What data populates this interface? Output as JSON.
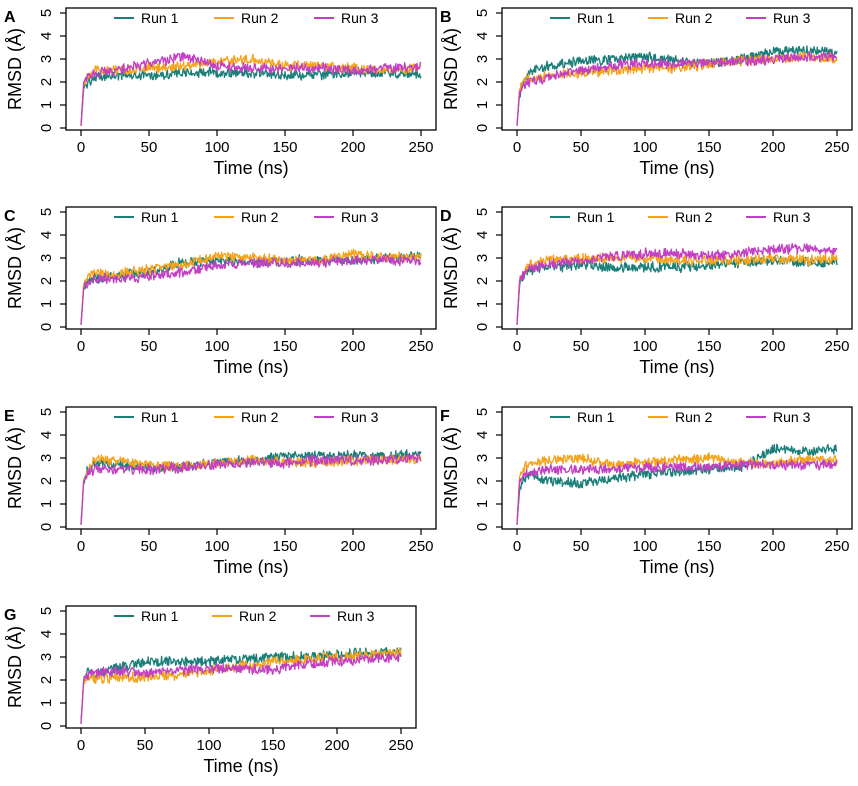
{
  "figure": {
    "xlabel": "Time (ns)",
    "ylabel": "RMSD (Å)",
    "series_colors": {
      "Run 1": "#1a7f79",
      "Run 2": "#f5a31a",
      "Run 3": "#c33fc3"
    }
  },
  "chart_data": [
    {
      "panel": "A",
      "type": "line",
      "xlabel": "Time (ns)",
      "ylabel": "RMSD (Å)",
      "xlim": [
        0,
        250
      ],
      "ylim": [
        0,
        5
      ],
      "xticks": [
        0,
        50,
        100,
        150,
        200,
        250
      ],
      "yticks": [
        0,
        1,
        2,
        3,
        4,
        5
      ],
      "legend_position": "top",
      "x": [
        0,
        2,
        5,
        10,
        25,
        50,
        75,
        100,
        125,
        150,
        175,
        200,
        225,
        250
      ],
      "series": [
        {
          "name": "Run 1",
          "values": [
            0.1,
            1.7,
            2.0,
            2.2,
            2.3,
            2.3,
            2.4,
            2.4,
            2.4,
            2.3,
            2.3,
            2.4,
            2.4,
            2.3
          ]
        },
        {
          "name": "Run 2",
          "values": [
            0.1,
            1.9,
            2.3,
            2.5,
            2.5,
            2.6,
            2.7,
            2.9,
            3.0,
            2.7,
            2.7,
            2.6,
            2.5,
            2.6
          ]
        },
        {
          "name": "Run 3",
          "values": [
            0.1,
            2.0,
            2.2,
            2.4,
            2.5,
            2.8,
            3.1,
            2.7,
            2.6,
            2.6,
            2.6,
            2.5,
            2.6,
            2.7
          ]
        }
      ]
    },
    {
      "panel": "B",
      "type": "line",
      "xlabel": "Time (ns)",
      "ylabel": "RMSD (Å)",
      "xlim": [
        0,
        250
      ],
      "ylim": [
        0,
        5
      ],
      "xticks": [
        0,
        50,
        100,
        150,
        200,
        250
      ],
      "yticks": [
        0,
        1,
        2,
        3,
        4,
        5
      ],
      "legend_position": "top",
      "x": [
        0,
        2,
        5,
        10,
        25,
        50,
        75,
        100,
        125,
        150,
        175,
        200,
        225,
        250
      ],
      "series": [
        {
          "name": "Run 1",
          "values": [
            0.1,
            1.5,
            2.0,
            2.5,
            2.7,
            2.9,
            3.0,
            3.1,
            2.9,
            2.8,
            3.0,
            3.3,
            3.4,
            3.2
          ]
        },
        {
          "name": "Run 2",
          "values": [
            0.1,
            1.7,
            2.0,
            2.2,
            2.3,
            2.4,
            2.5,
            2.6,
            2.6,
            2.8,
            2.9,
            3.0,
            3.1,
            3.0
          ]
        },
        {
          "name": "Run 3",
          "values": [
            0.1,
            1.6,
            1.9,
            2.0,
            2.2,
            2.5,
            2.7,
            2.8,
            2.8,
            2.8,
            2.9,
            3.0,
            3.1,
            3.1
          ]
        }
      ]
    },
    {
      "panel": "C",
      "type": "line",
      "xlabel": "Time (ns)",
      "ylabel": "RMSD (Å)",
      "xlim": [
        0,
        250
      ],
      "ylim": [
        0,
        5
      ],
      "xticks": [
        0,
        50,
        100,
        150,
        200,
        250
      ],
      "yticks": [
        0,
        1,
        2,
        3,
        4,
        5
      ],
      "legend_position": "top",
      "x": [
        0,
        2,
        5,
        10,
        25,
        50,
        75,
        100,
        125,
        150,
        175,
        200,
        225,
        250
      ],
      "series": [
        {
          "name": "Run 1",
          "values": [
            0.1,
            1.7,
            2.0,
            2.1,
            2.2,
            2.4,
            2.8,
            2.9,
            2.8,
            2.9,
            2.9,
            2.9,
            3.0,
            3.1
          ]
        },
        {
          "name": "Run 2",
          "values": [
            0.1,
            1.9,
            2.2,
            2.3,
            2.3,
            2.5,
            2.7,
            3.1,
            3.0,
            2.9,
            2.9,
            3.2,
            3.0,
            3.1
          ]
        },
        {
          "name": "Run 3",
          "values": [
            0.1,
            1.7,
            1.9,
            2.1,
            2.1,
            2.2,
            2.4,
            2.7,
            2.8,
            2.8,
            2.8,
            2.9,
            2.9,
            2.9
          ]
        }
      ]
    },
    {
      "panel": "D",
      "type": "line",
      "xlabel": "Time (ns)",
      "ylabel": "RMSD (Å)",
      "xlim": [
        0,
        250
      ],
      "ylim": [
        0,
        5
      ],
      "xticks": [
        0,
        50,
        100,
        150,
        200,
        250
      ],
      "yticks": [
        0,
        1,
        2,
        3,
        4,
        5
      ],
      "legend_position": "top",
      "x": [
        0,
        2,
        5,
        10,
        25,
        50,
        75,
        100,
        125,
        150,
        175,
        200,
        225,
        250
      ],
      "series": [
        {
          "name": "Run 1",
          "values": [
            0.1,
            1.8,
            2.2,
            2.5,
            2.6,
            2.7,
            2.6,
            2.6,
            2.6,
            2.7,
            2.8,
            2.9,
            2.8,
            2.8
          ]
        },
        {
          "name": "Run 2",
          "values": [
            0.1,
            2.0,
            2.4,
            2.7,
            2.9,
            3.0,
            3.0,
            3.0,
            2.9,
            2.9,
            2.9,
            3.0,
            2.9,
            3.0
          ]
        },
        {
          "name": "Run 3",
          "values": [
            0.1,
            2.0,
            2.3,
            2.5,
            2.7,
            2.9,
            3.1,
            3.2,
            3.2,
            3.1,
            3.2,
            3.4,
            3.4,
            3.3
          ]
        }
      ]
    },
    {
      "panel": "E",
      "type": "line",
      "xlabel": "Time (ns)",
      "ylabel": "RMSD (Å)",
      "xlim": [
        0,
        250
      ],
      "ylim": [
        0,
        5
      ],
      "xticks": [
        0,
        50,
        100,
        150,
        200,
        250
      ],
      "yticks": [
        0,
        1,
        2,
        3,
        4,
        5
      ],
      "legend_position": "top",
      "x": [
        0,
        2,
        5,
        10,
        25,
        50,
        75,
        100,
        125,
        150,
        175,
        200,
        225,
        250
      ],
      "series": [
        {
          "name": "Run 1",
          "values": [
            0.1,
            2.0,
            2.5,
            2.8,
            2.7,
            2.6,
            2.6,
            2.8,
            2.9,
            3.1,
            3.1,
            3.1,
            3.1,
            3.2
          ]
        },
        {
          "name": "Run 2",
          "values": [
            0.1,
            2.1,
            2.5,
            2.9,
            2.9,
            2.7,
            2.6,
            2.8,
            2.9,
            2.8,
            2.8,
            2.9,
            2.9,
            3.0
          ]
        },
        {
          "name": "Run 3",
          "values": [
            0.1,
            2.0,
            2.3,
            2.5,
            2.5,
            2.5,
            2.6,
            2.7,
            2.8,
            2.8,
            2.9,
            2.9,
            2.9,
            3.0
          ]
        }
      ]
    },
    {
      "panel": "F",
      "type": "line",
      "xlabel": "Time (ns)",
      "ylabel": "RMSD (Å)",
      "xlim": [
        0,
        250
      ],
      "ylim": [
        0,
        5
      ],
      "xticks": [
        0,
        50,
        100,
        150,
        200,
        250
      ],
      "yticks": [
        0,
        1,
        2,
        3,
        4,
        5
      ],
      "legend_position": "top",
      "x": [
        0,
        2,
        5,
        10,
        25,
        50,
        75,
        100,
        125,
        150,
        175,
        200,
        225,
        250
      ],
      "series": [
        {
          "name": "Run 1",
          "values": [
            0.1,
            1.6,
            2.0,
            2.3,
            2.0,
            1.9,
            2.1,
            2.3,
            2.4,
            2.5,
            2.6,
            3.4,
            3.3,
            3.4
          ]
        },
        {
          "name": "Run 2",
          "values": [
            0.1,
            2.2,
            2.5,
            2.8,
            2.9,
            3.0,
            2.7,
            2.8,
            2.9,
            3.0,
            2.8,
            2.8,
            2.9,
            2.9
          ]
        },
        {
          "name": "Run 3",
          "values": [
            0.1,
            2.0,
            2.3,
            2.4,
            2.5,
            2.5,
            2.5,
            2.6,
            2.6,
            2.6,
            2.7,
            2.7,
            2.7,
            2.7
          ]
        }
      ]
    },
    {
      "panel": "G",
      "type": "line",
      "xlabel": "Time (ns)",
      "ylabel": "RMSD (Å)",
      "xlim": [
        0,
        250
      ],
      "ylim": [
        0,
        5
      ],
      "xticks": [
        0,
        50,
        100,
        150,
        200,
        250
      ],
      "yticks": [
        0,
        1,
        2,
        3,
        4,
        5
      ],
      "legend_position": "top",
      "x": [
        0,
        2,
        5,
        10,
        25,
        50,
        75,
        100,
        125,
        150,
        175,
        200,
        225,
        250
      ],
      "series": [
        {
          "name": "Run 1",
          "values": [
            0.1,
            1.9,
            2.4,
            2.2,
            2.5,
            2.8,
            2.8,
            2.8,
            2.9,
            3.0,
            3.0,
            3.1,
            3.2,
            3.2
          ]
        },
        {
          "name": "Run 2",
          "values": [
            0.1,
            1.8,
            2.1,
            2.1,
            2.1,
            2.1,
            2.2,
            2.4,
            2.6,
            2.8,
            2.9,
            3.0,
            3.1,
            3.2
          ]
        },
        {
          "name": "Run 3",
          "values": [
            0.1,
            1.9,
            2.2,
            2.3,
            2.4,
            2.3,
            2.4,
            2.5,
            2.5,
            2.4,
            2.7,
            2.8,
            2.9,
            3.0
          ]
        }
      ]
    }
  ]
}
